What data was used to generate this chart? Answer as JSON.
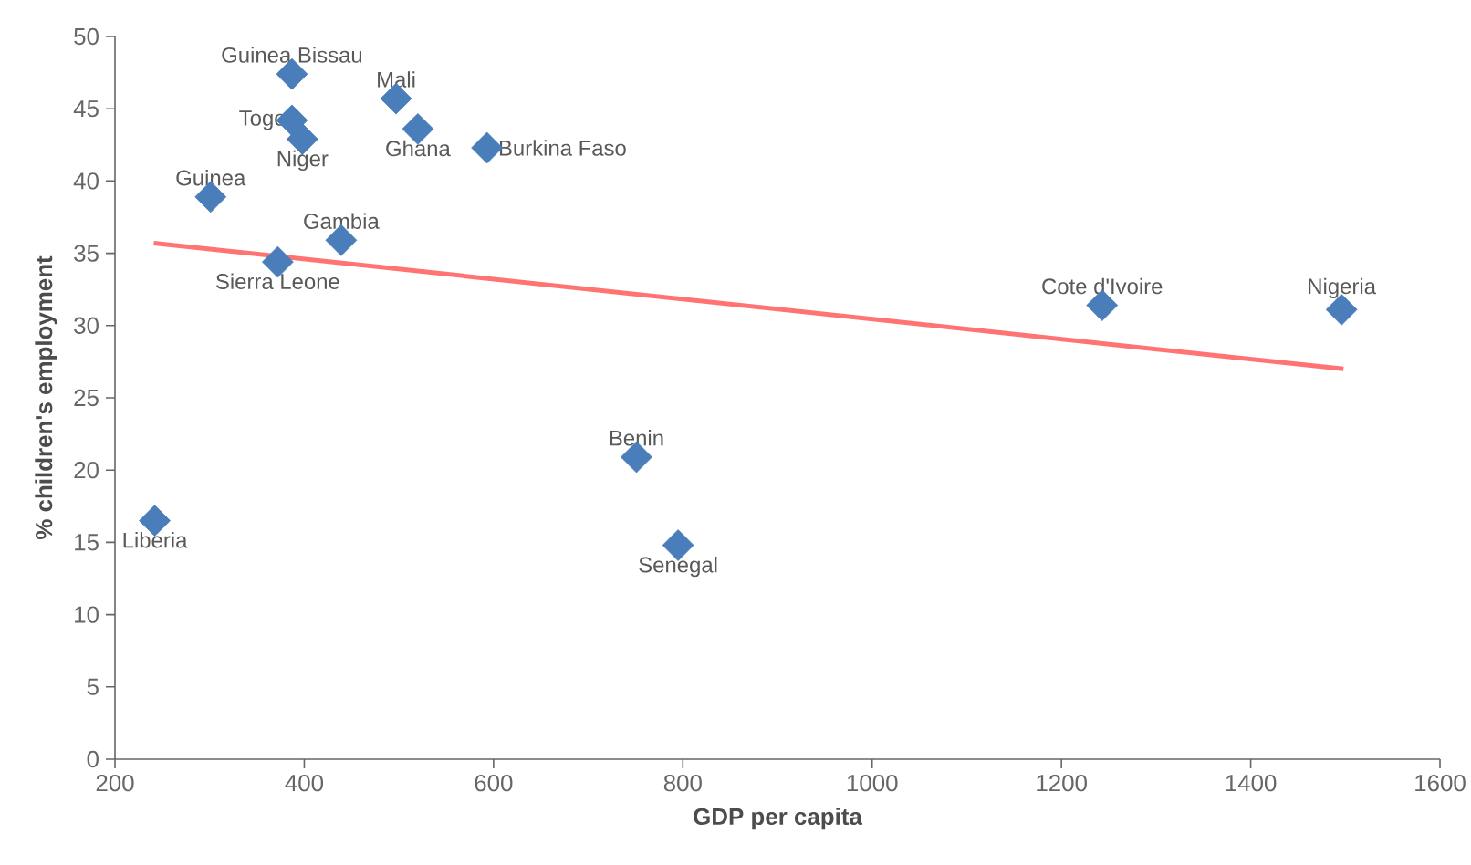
{
  "chart_data": {
    "type": "scatter",
    "xlabel": "GDP per capita",
    "ylabel": "% children's employment",
    "xlim": [
      200,
      1600
    ],
    "xticks": [
      200,
      400,
      600,
      800,
      1000,
      1200,
      1400,
      1600
    ],
    "ylim": [
      0,
      50
    ],
    "yticks": [
      0,
      5,
      10,
      15,
      20,
      25,
      30,
      35,
      40,
      45,
      50
    ],
    "grid": false,
    "legend": false,
    "marker": "diamond",
    "series": [
      {
        "color": "#4a7ebb",
        "x": [
          387,
          497,
          387,
          398,
          520,
          593,
          301,
          439,
          372,
          1243,
          1496,
          751,
          795,
          242
        ],
        "values": [
          47.4,
          45.7,
          44.2,
          42.9,
          43.6,
          42.3,
          38.9,
          35.9,
          34.4,
          31.4,
          31.1,
          20.9,
          14.8,
          16.5
        ]
      },
      {
        "type": "line",
        "marker": "none",
        "color": "#ff5a5a",
        "x": [
          241,
          1498
        ],
        "values": [
          35.7,
          27.0
        ]
      }
    ],
    "annotations": [
      {
        "text": "Guinea Bissau",
        "x": 387,
        "y": 47.4
      },
      {
        "text": "Mali",
        "x": 497,
        "y": 45.7
      },
      {
        "text": "Togo",
        "x": 387,
        "y": 44.2
      },
      {
        "text": "Niger",
        "x": 398,
        "y": 42.9
      },
      {
        "text": "Ghana",
        "x": 520,
        "y": 43.6
      },
      {
        "text": "Burkina Faso",
        "x": 593,
        "y": 42.3
      },
      {
        "text": "Guinea",
        "x": 301,
        "y": 38.9
      },
      {
        "text": "Gambia",
        "x": 439,
        "y": 35.9
      },
      {
        "text": "Sierra Leone",
        "x": 372,
        "y": 34.4
      },
      {
        "text": "Cote d'Ivoire",
        "x": 1243,
        "y": 31.4
      },
      {
        "text": "Nigeria",
        "x": 1496,
        "y": 31.1
      },
      {
        "text": "Benin",
        "x": 751,
        "y": 20.9
      },
      {
        "text": "Senegal",
        "x": 795,
        "y": 14.8
      },
      {
        "text": "Liberia",
        "x": 242,
        "y": 16.5
      }
    ]
  }
}
